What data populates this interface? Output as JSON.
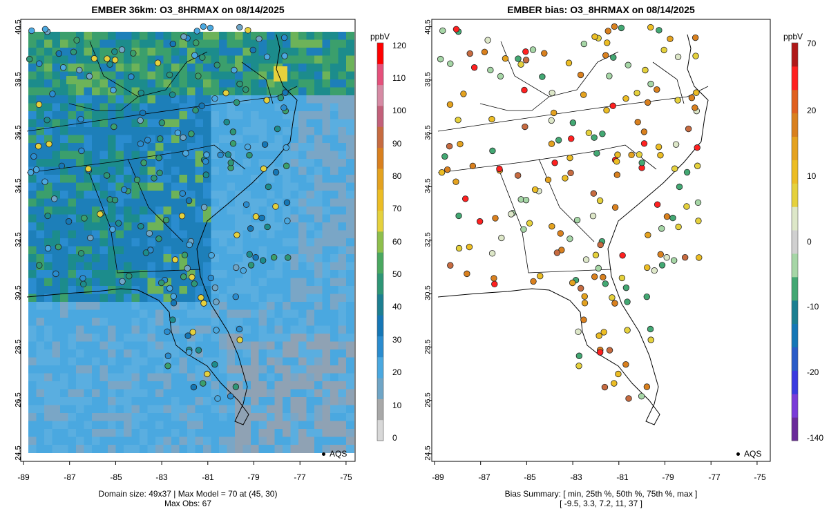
{
  "left_panel": {
    "title": "EMBER 36km: O3_8HRMAX on 08/14/2025",
    "footer_line1": "Domain size: 49x37 | Max Model = 70 at (45, 30)",
    "footer_line2": "Max Obs: 67",
    "colorbar_unit": "ppbV",
    "colorbar_ticks": [
      "0",
      "10",
      "20",
      "30",
      "40",
      "50",
      "60",
      "70",
      "80",
      "90",
      "100",
      "110",
      "120"
    ],
    "colorbar_colors": [
      "#d8d8d8",
      "#a8a8a8",
      "#6fa5c6",
      "#4aa8e0",
      "#2a8ccf",
      "#1577b6",
      "#1c7f91",
      "#2e9676",
      "#4aa860",
      "#8ebf4c",
      "#e5d13c",
      "#ecbd24",
      "#e4a21f",
      "#d9801e",
      "#c76b40",
      "#c3607a",
      "#d68aa4",
      "#e5507b",
      "#ff0000"
    ]
  },
  "right_panel": {
    "title": "EMBER bias: O3_8HRMAX on 08/14/2025",
    "footer_line1": "Bias Summary: [ min, 25th %, 50th %, 75th %, max ]",
    "footer_line2": "[ -9.5,   3.3,   7.2,   11,   37 ]",
    "colorbar_unit": "ppbV",
    "colorbar_ticks": [
      "70",
      "20",
      "10",
      "0",
      "-10",
      "-20",
      "-140"
    ],
    "colorbar_colors": [
      "#b01919",
      "#ff2020",
      "#e06020",
      "#d9801e",
      "#e4a21f",
      "#ecbd24",
      "#e5d13c",
      "#dde7c8",
      "#d0d0d0",
      "#a6d6a6",
      "#43a873",
      "#1c7f91",
      "#1577b6",
      "#2a5cc8",
      "#3a3ae0",
      "#7a3ad8",
      "#6a2a9a"
    ]
  },
  "legend_label": "AQS",
  "x_ticks": [
    "-89",
    "-87",
    "-85",
    "-83",
    "-81",
    "-79",
    "-77",
    "-75"
  ],
  "y_ticks": [
    "24.5",
    "26.5",
    "28.5",
    "30.5",
    "32.5",
    "34.5",
    "36.5",
    "38.5",
    "40.5"
  ],
  "map": {
    "model_field_colors": [
      "#1d7fb9",
      "#2a8ccf",
      "#1c8c8c",
      "#3b9f6c",
      "#6db359",
      "#4aa8e0",
      "#5aaee0",
      "#7aa6c6",
      "#8fa2b4",
      "#e5d13c"
    ]
  }
}
